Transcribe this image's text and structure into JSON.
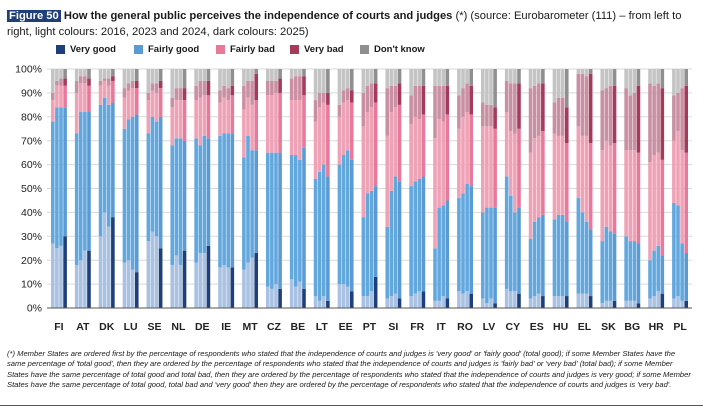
{
  "figure": {
    "label": "Figure 50",
    "title_bold": "How the general public perceives the independence of courts and judges",
    "title_rest": " (*) (source: Eurobarometer (111) – from left to right, light colours: 2016, 2023 and 2024, dark colours: 2025)"
  },
  "legend": [
    {
      "label": "Very good",
      "color": "#1f3f7a"
    },
    {
      "label": "Fairly good",
      "color": "#5b9bd5"
    },
    {
      "label": "Fairly bad",
      "color": "#e8799a"
    },
    {
      "label": "Very bad",
      "color": "#a63a5a"
    },
    {
      "label": "Don't know",
      "color": "#8f8f8f"
    }
  ],
  "note": "(*) Member States are ordered first by the percentage of respondents who stated that the independence of courts and judges is 'very good' or 'fairly good' (total good); if some Member States have the same percentage of 'total good', then they are ordered by the percentage of respondents who stated that the independence of courts and judges is 'fairly bad' or 'very bad' (total bad); if some Member States have the same percentage of total good and total bad, then they are ordered by the percentage of respondents who stated that the independence of courts and judges is very good; if some Member States have the same percentage of total good, total bad and 'very good' then they are ordered by the percentage of respondents who stated that the independence of courts and judges is 'very bad'.",
  "chart_data": {
    "type": "bar",
    "stacked": true,
    "years": [
      "2016",
      "2023",
      "2024",
      "2025"
    ],
    "series_names": [
      "Very good",
      "Fairly good",
      "Fairly bad",
      "Very bad",
      "Don't know"
    ],
    "colors_light": [
      "#a9c1e2",
      "#62a8df",
      "#efa2b6",
      "#c990a3",
      "#c4c4c4"
    ],
    "colors_dark": [
      "#1f3f7a",
      "#5b9bd5",
      "#e8799a",
      "#a63a5a",
      "#8f8f8f"
    ],
    "ylim": [
      0,
      100
    ],
    "yticks": [
      "0%",
      "10%",
      "20%",
      "30%",
      "40%",
      "50%",
      "60%",
      "70%",
      "80%",
      "90%",
      "100%"
    ],
    "countries": [
      {
        "code": "FI",
        "bars": [
          [
            27,
            51,
            9,
            3,
            10
          ],
          [
            25,
            59,
            9,
            2,
            5
          ],
          [
            26,
            58,
            9,
            3,
            4
          ],
          [
            30,
            54,
            9,
            3,
            4
          ]
        ]
      },
      {
        "code": "AT",
        "bars": [
          [
            18,
            55,
            17,
            5,
            5
          ],
          [
            20,
            62,
            12,
            3,
            3
          ],
          [
            24,
            58,
            12,
            3,
            3
          ],
          [
            24,
            58,
            11,
            3,
            4
          ]
        ]
      },
      {
        "code": "DK",
        "bars": [
          [
            30,
            55,
            8,
            2,
            5
          ],
          [
            40,
            48,
            7,
            1,
            4
          ],
          [
            34,
            51,
            8,
            3,
            4
          ],
          [
            38,
            48,
            9,
            2,
            3
          ]
        ]
      },
      {
        "code": "LU",
        "bars": [
          [
            19,
            56,
            13,
            4,
            8
          ],
          [
            20,
            59,
            12,
            3,
            6
          ],
          [
            16,
            64,
            12,
            3,
            5
          ],
          [
            15,
            66,
            11,
            3,
            5
          ]
        ]
      },
      {
        "code": "SE",
        "bars": [
          [
            28,
            45,
            14,
            3,
            10
          ],
          [
            32,
            48,
            11,
            3,
            6
          ],
          [
            30,
            48,
            12,
            4,
            6
          ],
          [
            25,
            55,
            12,
            3,
            5
          ]
        ]
      },
      {
        "code": "NL",
        "bars": [
          [
            18,
            50,
            16,
            4,
            12
          ],
          [
            22,
            49,
            16,
            5,
            8
          ],
          [
            18,
            53,
            16,
            5,
            8
          ],
          [
            24,
            46,
            17,
            5,
            8
          ]
        ]
      },
      {
        "code": "DE",
        "bars": [
          [
            19,
            52,
            16,
            6,
            7
          ],
          [
            23,
            45,
            20,
            7,
            5
          ],
          [
            23,
            49,
            17,
            6,
            5
          ],
          [
            26,
            45,
            18,
            6,
            5
          ]
        ]
      },
      {
        "code": "IE",
        "bars": [
          [
            17,
            55,
            14,
            5,
            9
          ],
          [
            18,
            55,
            15,
            5,
            7
          ],
          [
            17,
            56,
            14,
            5,
            8
          ],
          [
            17,
            56,
            16,
            4,
            7
          ]
        ]
      },
      {
        "code": "MT",
        "bars": [
          [
            16,
            47,
            20,
            10,
            7
          ],
          [
            19,
            53,
            16,
            7,
            5
          ],
          [
            21,
            45,
            19,
            10,
            5
          ],
          [
            23,
            43,
            21,
            11,
            2
          ]
        ]
      },
      {
        "code": "CZ",
        "bars": [
          [
            9,
            56,
            24,
            6,
            5
          ],
          [
            8,
            57,
            24,
            6,
            5
          ],
          [
            10,
            55,
            25,
            5,
            5
          ],
          [
            8,
            57,
            25,
            6,
            4
          ]
        ]
      },
      {
        "code": "BE",
        "bars": [
          [
            12,
            52,
            23,
            9,
            4
          ],
          [
            9,
            55,
            23,
            10,
            3
          ],
          [
            11,
            51,
            25,
            10,
            3
          ],
          [
            8,
            59,
            22,
            8,
            3
          ]
        ]
      },
      {
        "code": "LT",
        "bars": [
          [
            5,
            49,
            24,
            9,
            13
          ],
          [
            3,
            54,
            27,
            6,
            10
          ],
          [
            5,
            55,
            26,
            4,
            10
          ],
          [
            3,
            52,
            30,
            5,
            10
          ]
        ]
      },
      {
        "code": "EE",
        "bars": [
          [
            10,
            50,
            20,
            5,
            15
          ],
          [
            10,
            54,
            22,
            5,
            9
          ],
          [
            9,
            57,
            21,
            5,
            8
          ],
          [
            7,
            55,
            24,
            5,
            9
          ]
        ]
      },
      {
        "code": "PT",
        "bars": [
          [
            5,
            33,
            38,
            14,
            10
          ],
          [
            5,
            43,
            34,
            11,
            7
          ],
          [
            7,
            42,
            35,
            10,
            6
          ],
          [
            13,
            38,
            35,
            8,
            6
          ]
        ]
      },
      {
        "code": "SI",
        "bars": [
          [
            4,
            30,
            38,
            20,
            8
          ],
          [
            5,
            44,
            33,
            11,
            7
          ],
          [
            6,
            49,
            29,
            9,
            7
          ],
          [
            4,
            49,
            32,
            9,
            6
          ]
        ]
      },
      {
        "code": "FR",
        "bars": [
          [
            5,
            46,
            26,
            12,
            11
          ],
          [
            6,
            47,
            27,
            13,
            7
          ],
          [
            7,
            47,
            25,
            14,
            7
          ],
          [
            7,
            48,
            26,
            12,
            7
          ]
        ]
      },
      {
        "code": "IT",
        "bars": [
          [
            3,
            22,
            46,
            22,
            7
          ],
          [
            3,
            39,
            37,
            14,
            7
          ],
          [
            5,
            38,
            35,
            15,
            7
          ],
          [
            4,
            41,
            36,
            12,
            7
          ]
        ]
      },
      {
        "code": "RO",
        "bars": [
          [
            7,
            39,
            29,
            14,
            11
          ],
          [
            6,
            42,
            32,
            12,
            8
          ],
          [
            7,
            45,
            30,
            12,
            6
          ],
          [
            6,
            45,
            30,
            12,
            7
          ]
        ]
      },
      {
        "code": "LV",
        "bars": [
          [
            4,
            36,
            36,
            10,
            14
          ],
          [
            2,
            40,
            34,
            9,
            15
          ],
          [
            4,
            38,
            34,
            9,
            15
          ],
          [
            2,
            40,
            33,
            9,
            16
          ]
        ]
      },
      {
        "code": "CY",
        "bars": [
          [
            8,
            47,
            27,
            13,
            5
          ],
          [
            7,
            40,
            27,
            20,
            6
          ],
          [
            7,
            33,
            33,
            21,
            6
          ],
          [
            6,
            36,
            33,
            19,
            6
          ]
        ]
      },
      {
        "code": "ES",
        "bars": [
          [
            4,
            25,
            36,
            27,
            8
          ],
          [
            5,
            31,
            35,
            22,
            7
          ],
          [
            6,
            32,
            34,
            22,
            6
          ],
          [
            5,
            34,
            35,
            20,
            6
          ]
        ]
      },
      {
        "code": "HU",
        "bars": [
          [
            5,
            32,
            36,
            13,
            14
          ],
          [
            5,
            34,
            33,
            16,
            12
          ],
          [
            5,
            34,
            33,
            16,
            12
          ],
          [
            5,
            31,
            33,
            15,
            16
          ]
        ]
      },
      {
        "code": "EL",
        "bars": [
          [
            6,
            40,
            30,
            22,
            2
          ],
          [
            6,
            34,
            32,
            26,
            2
          ],
          [
            6,
            30,
            36,
            25,
            3
          ],
          [
            5,
            28,
            36,
            29,
            2
          ]
        ]
      },
      {
        "code": "SK",
        "bars": [
          [
            2,
            26,
            38,
            25,
            9
          ],
          [
            3,
            31,
            36,
            22,
            8
          ],
          [
            3,
            29,
            36,
            25,
            7
          ],
          [
            3,
            28,
            38,
            24,
            7
          ]
        ]
      },
      {
        "code": "BG",
        "bars": [
          [
            3,
            27,
            36,
            26,
            8
          ],
          [
            3,
            25,
            38,
            23,
            11
          ],
          [
            3,
            25,
            38,
            24,
            10
          ],
          [
            2,
            25,
            38,
            28,
            7
          ]
        ]
      },
      {
        "code": "HR",
        "bars": [
          [
            4,
            16,
            41,
            33,
            6
          ],
          [
            5,
            19,
            40,
            29,
            7
          ],
          [
            7,
            19,
            39,
            29,
            6
          ],
          [
            6,
            16,
            40,
            30,
            8
          ]
        ]
      },
      {
        "code": "PL",
        "bars": [
          [
            4,
            40,
            26,
            19,
            11
          ],
          [
            5,
            38,
            31,
            16,
            10
          ],
          [
            3,
            24,
            39,
            26,
            8
          ],
          [
            3,
            20,
            42,
            28,
            7
          ]
        ]
      }
    ]
  }
}
